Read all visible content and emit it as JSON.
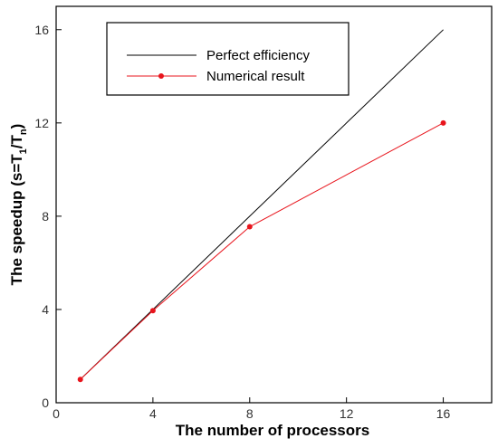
{
  "chart_data": {
    "type": "line",
    "xlabel": "The number of processors",
    "ylabel": {
      "prefix": "The speedup (s=T",
      "sub1": "1",
      "mid": "/T",
      "sub2": "n",
      "suffix": ")"
    },
    "xlim": [
      0,
      18
    ],
    "ylim": [
      0,
      17
    ],
    "xticks": [
      0,
      4,
      8,
      12,
      16
    ],
    "yticks": [
      0,
      4,
      8,
      12,
      16
    ],
    "grid": false,
    "legend_position": "top-center",
    "series": [
      {
        "name": "Perfect efficiency",
        "color": "#000000",
        "marker": "none",
        "x": [
          1,
          16
        ],
        "y": [
          1,
          16
        ]
      },
      {
        "name": "Numerical result",
        "color": "#e8141c",
        "marker": "circle",
        "x": [
          1,
          4,
          8,
          16
        ],
        "y": [
          1,
          3.95,
          7.55,
          12
        ]
      }
    ]
  }
}
